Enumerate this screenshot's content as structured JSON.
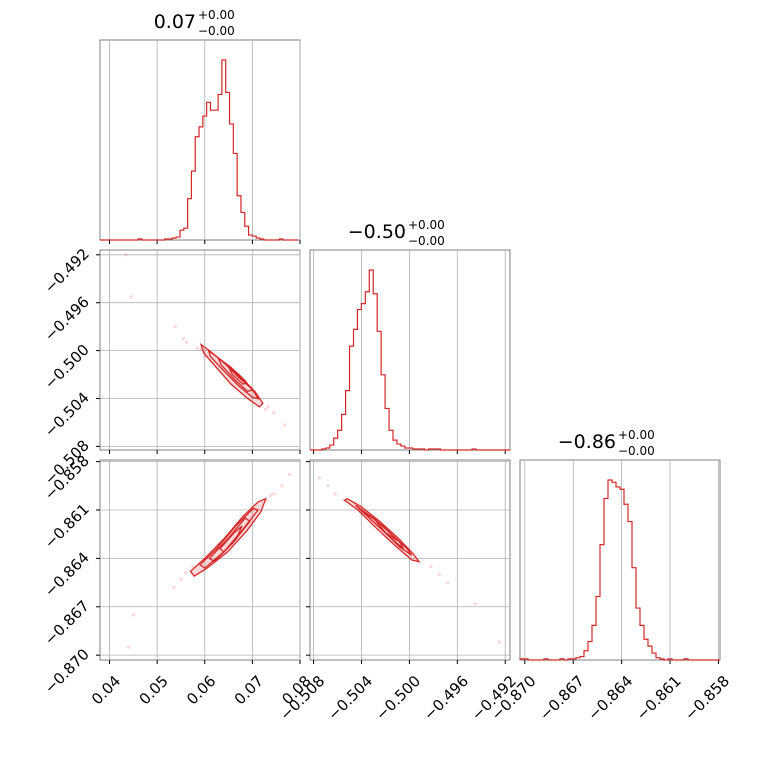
{
  "chart_data": {
    "type": "corner",
    "color": "#d62728",
    "parameters": [
      {
        "range": [
          0.038,
          0.08
        ],
        "ticks": [
          "0.04",
          "0.05",
          "0.06",
          "0.07",
          "0.08"
        ],
        "tick_values": [
          0.04,
          0.05,
          0.06,
          0.07,
          0.08
        ],
        "title": {
          "value": "0.07",
          "upper": "+0.00",
          "lower": "−0.00"
        },
        "histogram": {
          "bin_start": 0.038,
          "bin_width": 0.0008,
          "counts": [
            0,
            0,
            0,
            0,
            0,
            0,
            0,
            0,
            0,
            0,
            1,
            0,
            0,
            0,
            0,
            0,
            0,
            1,
            1,
            2,
            3,
            10,
            12,
            42,
            70,
            105,
            115,
            126,
            140,
            132,
            132,
            148,
            183,
            150,
            118,
            88,
            45,
            28,
            14,
            5,
            4,
            2,
            1,
            0,
            0,
            0,
            0,
            1,
            0,
            0,
            0,
            0
          ]
        }
      },
      {
        "range": [
          -0.5083,
          -0.4916
        ],
        "ticks": [
          "−0.508",
          "−0.504",
          "−0.500",
          "−0.496",
          "−0.492"
        ],
        "tick_values": [
          -0.508,
          -0.504,
          -0.5,
          -0.496,
          -0.492
        ],
        "title": {
          "value": "−0.50",
          "upper": "+0.00",
          "lower": "−0.00"
        },
        "histogram": {
          "bin_start": -0.5083,
          "bin_width": 0.00033,
          "counts": [
            0,
            0,
            0,
            1,
            2,
            5,
            12,
            20,
            36,
            60,
            105,
            122,
            142,
            148,
            160,
            182,
            158,
            120,
            76,
            42,
            20,
            10,
            6,
            4,
            2,
            2,
            1,
            1,
            1,
            0,
            1,
            1,
            1,
            0,
            0,
            0,
            0,
            0,
            0,
            0,
            0,
            1,
            0,
            0,
            0,
            0,
            0,
            0,
            0,
            0,
            0
          ]
        }
      },
      {
        "range": [
          -0.8703,
          -0.8579
        ],
        "ticks": [
          "−0.870",
          "−0.867",
          "−0.864",
          "−0.861",
          "−0.858"
        ],
        "tick_values": [
          -0.87,
          -0.867,
          -0.864,
          -0.861,
          -0.858
        ],
        "title": {
          "value": "−0.86",
          "upper": "+0.00",
          "lower": "−0.00"
        },
        "histogram": {
          "bin_start": -0.8703,
          "bin_width": 0.000248,
          "counts": [
            1,
            1,
            0,
            0,
            0,
            0,
            1,
            0,
            0,
            0,
            1,
            0,
            1,
            1,
            2,
            3,
            8,
            16,
            30,
            55,
            100,
            140,
            156,
            154,
            150,
            148,
            135,
            120,
            80,
            45,
            30,
            18,
            12,
            6,
            2,
            1,
            0,
            1,
            0,
            0,
            0,
            1,
            0,
            0,
            0,
            0,
            0,
            0,
            0,
            0
          ]
        }
      }
    ],
    "pairs": [
      {
        "row": 1,
        "col": 0,
        "samples": [
          [
            0.0435,
            -0.492
          ],
          [
            0.0445,
            -0.4955
          ],
          [
            0.0538,
            -0.498
          ],
          [
            0.0562,
            -0.4993
          ],
          [
            0.0745,
            -0.5052
          ],
          [
            0.0768,
            -0.5062
          ],
          [
            0.0733,
            -0.5047
          ],
          [
            0.0584,
            -0.4998
          ],
          [
            0.0712,
            -0.504
          ],
          [
            0.06,
            -0.5005
          ],
          [
            0.0555,
            -0.499
          ],
          [
            0.0728,
            -0.5049
          ],
          [
            0.0592,
            -0.4999
          ]
        ],
        "contours": [
          [
            [
              0.0592,
              -0.4995
            ],
            [
              0.061,
              -0.5
            ],
            [
              0.064,
              -0.501
            ],
            [
              0.067,
              -0.5022
            ],
            [
              0.0705,
              -0.5034
            ],
            [
              0.0722,
              -0.5044
            ],
            [
              0.0715,
              -0.5047
            ],
            [
              0.069,
              -0.504
            ],
            [
              0.0655,
              -0.5028
            ],
            [
              0.0622,
              -0.5013
            ],
            [
              0.0598,
              -0.5002
            ]
          ],
          [
            [
              0.0608,
              -0.5
            ],
            [
              0.0635,
              -0.5008
            ],
            [
              0.0665,
              -0.5019
            ],
            [
              0.0698,
              -0.5031
            ],
            [
              0.0712,
              -0.504
            ],
            [
              0.07,
              -0.5039
            ],
            [
              0.067,
              -0.5029
            ],
            [
              0.0638,
              -0.5016
            ],
            [
              0.0612,
              -0.5005
            ]
          ],
          [
            [
              0.0628,
              -0.5006
            ],
            [
              0.0655,
              -0.5014
            ],
            [
              0.0684,
              -0.5025
            ],
            [
              0.07,
              -0.5033
            ],
            [
              0.069,
              -0.5034
            ],
            [
              0.0662,
              -0.5024
            ],
            [
              0.0635,
              -0.5012
            ]
          ],
          [
            [
              0.0648,
              -0.5012
            ],
            [
              0.0672,
              -0.502
            ],
            [
              0.0688,
              -0.5027
            ],
            [
              0.068,
              -0.5028
            ],
            [
              0.0658,
              -0.502
            ]
          ]
        ]
      },
      {
        "row": 2,
        "col": 0,
        "samples": [
          [
            0.044,
            -0.8695
          ],
          [
            0.045,
            -0.8675
          ],
          [
            0.0535,
            -0.8658
          ],
          [
            0.056,
            -0.8649
          ],
          [
            0.0762,
            -0.8595
          ],
          [
            0.0778,
            -0.8588
          ],
          [
            0.0745,
            -0.86
          ],
          [
            0.0575,
            -0.8645
          ],
          [
            0.073,
            -0.8604
          ],
          [
            0.055,
            -0.8653
          ],
          [
            0.0738,
            -0.8601
          ]
        ],
        "contours": [
          [
            [
              0.057,
              -0.8648
            ],
            [
              0.06,
              -0.864
            ],
            [
              0.064,
              -0.8628
            ],
            [
              0.068,
              -0.8614
            ],
            [
              0.0712,
              -0.8605
            ],
            [
              0.0728,
              -0.8603
            ],
            [
              0.0718,
              -0.8611
            ],
            [
              0.0688,
              -0.8623
            ],
            [
              0.0648,
              -0.8636
            ],
            [
              0.0605,
              -0.8646
            ],
            [
              0.0578,
              -0.8651
            ]
          ],
          [
            [
              0.059,
              -0.8644
            ],
            [
              0.0625,
              -0.8634
            ],
            [
              0.0665,
              -0.862
            ],
            [
              0.0702,
              -0.8609
            ],
            [
              0.0712,
              -0.861
            ],
            [
              0.068,
              -0.8622
            ],
            [
              0.064,
              -0.8636
            ],
            [
              0.06,
              -0.8646
            ]
          ],
          [
            [
              0.061,
              -0.864
            ],
            [
              0.0648,
              -0.8628
            ],
            [
              0.0685,
              -0.8615
            ],
            [
              0.0695,
              -0.8617
            ],
            [
              0.066,
              -0.863
            ],
            [
              0.062,
              -0.8642
            ]
          ],
          [
            [
              0.0632,
              -0.8634
            ],
            [
              0.0662,
              -0.8624
            ],
            [
              0.0678,
              -0.862
            ],
            [
              0.0666,
              -0.8628
            ],
            [
              0.064,
              -0.8636
            ]
          ]
        ]
      },
      {
        "row": 2,
        "col": 1,
        "samples": [
          [
            -0.5075,
            -0.859
          ],
          [
            -0.5068,
            -0.8595
          ],
          [
            -0.4975,
            -0.865
          ],
          [
            -0.4968,
            -0.8655
          ],
          [
            -0.4945,
            -0.8668
          ],
          [
            -0.4925,
            -0.8692
          ],
          [
            -0.5062,
            -0.86
          ],
          [
            -0.4982,
            -0.8645
          ],
          [
            -0.5055,
            -0.8604
          ]
        ],
        "contours": [
          [
            [
              -0.5052,
              -0.8603
            ],
            [
              -0.504,
              -0.8608
            ],
            [
              -0.5025,
              -0.8617
            ],
            [
              -0.501,
              -0.8627
            ],
            [
              -0.4997,
              -0.8637
            ],
            [
              -0.4992,
              -0.8642
            ],
            [
              -0.4998,
              -0.8641
            ],
            [
              -0.5012,
              -0.8632
            ],
            [
              -0.5028,
              -0.8621
            ],
            [
              -0.5043,
              -0.861
            ],
            [
              -0.5054,
              -0.8604
            ]
          ],
          [
            [
              -0.5045,
              -0.8607
            ],
            [
              -0.503,
              -0.8615
            ],
            [
              -0.5015,
              -0.8625
            ],
            [
              -0.5002,
              -0.8634
            ],
            [
              -0.4998,
              -0.8638
            ],
            [
              -0.5008,
              -0.8633
            ],
            [
              -0.5023,
              -0.8622
            ],
            [
              -0.5038,
              -0.8612
            ]
          ],
          [
            [
              -0.5038,
              -0.8611
            ],
            [
              -0.5022,
              -0.862
            ],
            [
              -0.5008,
              -0.863
            ],
            [
              -0.5005,
              -0.8634
            ],
            [
              -0.5016,
              -0.8627
            ],
            [
              -0.5032,
              -0.8616
            ]
          ],
          [
            [
              -0.503,
              -0.8615
            ],
            [
              -0.5018,
              -0.8623
            ],
            [
              -0.501,
              -0.8629
            ],
            [
              -0.502,
              -0.8624
            ]
          ]
        ]
      }
    ]
  }
}
